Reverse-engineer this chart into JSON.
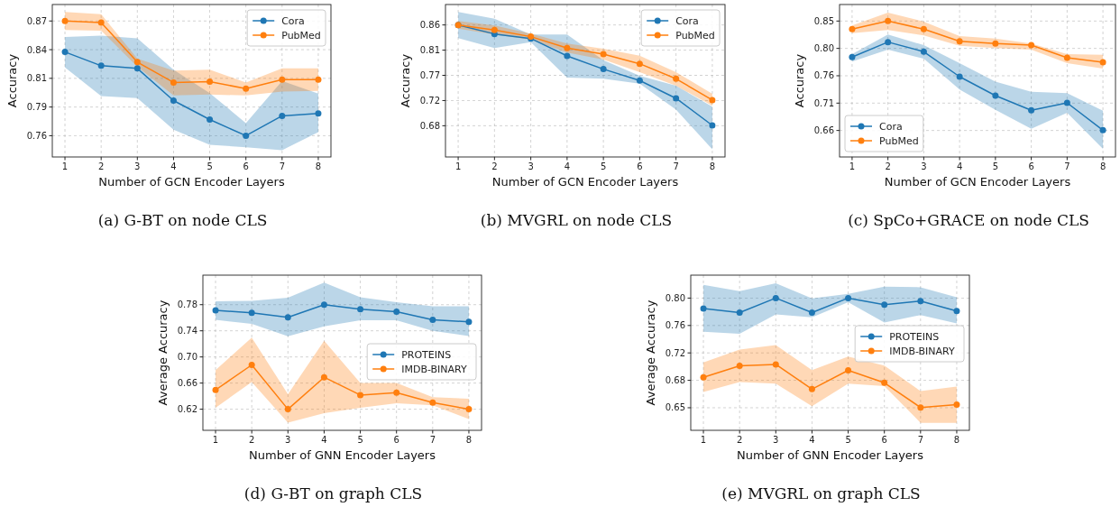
{
  "chart_data": [
    {
      "type": "line",
      "title": "(a) G-BT on node CLS",
      "xlabel": "Number of GCN Encoder Layers",
      "ylabel": "Accuracy",
      "x": [
        1,
        2,
        3,
        4,
        5,
        6,
        7,
        8
      ],
      "xlim": [
        0.65,
        8.35
      ],
      "xticks": [
        1,
        2,
        3,
        4,
        5,
        6,
        7,
        8
      ],
      "ylim": [
        0.7396,
        0.8858
      ],
      "yticks": [
        {
          "value": 0.76,
          "label": "0.76"
        },
        {
          "value": 0.7875,
          "label": "0.79"
        },
        {
          "value": 0.815,
          "label": "0.81"
        },
        {
          "value": 0.8425,
          "label": "0.84"
        },
        {
          "value": 0.87,
          "label": "0.87"
        }
      ],
      "grid": true,
      "legend": "top right",
      "marker": "circle",
      "line_style": "solid",
      "series": [
        {
          "name": "Cora",
          "color": "#1f77b4",
          "values": [
            0.8403,
            0.8271,
            0.8245,
            0.7937,
            0.7755,
            0.76,
            0.779,
            0.7813
          ],
          "lower": [
            0.8254,
            0.798,
            0.796,
            0.7658,
            0.7513,
            0.749,
            0.7461,
            0.7634
          ],
          "upper": [
            0.8547,
            0.8559,
            0.8533,
            0.8233,
            0.8009,
            0.7721,
            0.8124,
            0.8003
          ]
        },
        {
          "name": "PubMed",
          "color": "#ff7f0e",
          "values": [
            0.87,
            0.8686,
            0.8306,
            0.811,
            0.8118,
            0.8052,
            0.8138,
            0.8138
          ],
          "lower": [
            0.8614,
            0.8608,
            0.8262,
            0.7986,
            0.7994,
            0.7986,
            0.8023,
            0.8029
          ],
          "upper": [
            0.8786,
            0.8766,
            0.834,
            0.8225,
            0.8233,
            0.811,
            0.8245,
            0.8245
          ]
        }
      ]
    },
    {
      "type": "line",
      "title": "(b) MVGRL on node CLS",
      "xlabel": "Number of GCN Encoder Layers",
      "ylabel": "Accuracy",
      "x": [
        1,
        2,
        3,
        4,
        5,
        6,
        7,
        8
      ],
      "xlim": [
        0.65,
        8.35
      ],
      "xticks": [
        1,
        2,
        3,
        4,
        5,
        6,
        7,
        8
      ],
      "ylim": [
        0.6242,
        0.8965
      ],
      "yticks": [
        {
          "value": 0.68,
          "label": "0.68"
        },
        {
          "value": 0.725,
          "label": "0.72"
        },
        {
          "value": 0.77,
          "label": "0.77"
        },
        {
          "value": 0.815,
          "label": "0.81"
        },
        {
          "value": 0.86,
          "label": "0.86"
        }
      ],
      "grid": true,
      "legend": "top right",
      "marker": "circle",
      "line_style": "solid",
      "series": [
        {
          "name": "Cora",
          "color": "#1f77b4",
          "values": [
            0.86,
            0.8439,
            0.8358,
            0.8047,
            0.7811,
            0.7607,
            0.729,
            0.6806
          ],
          "lower": [
            0.8364,
            0.8187,
            0.8294,
            0.766,
            0.7639,
            0.7553,
            0.7086,
            0.6377
          ],
          "upper": [
            0.8831,
            0.8713,
            0.8428,
            0.8428,
            0.7972,
            0.7693,
            0.7515,
            0.7139
          ]
        },
        {
          "name": "PubMed",
          "color": "#ff7f0e",
          "values": [
            0.86,
            0.8509,
            0.8391,
            0.8187,
            0.8079,
            0.7907,
            0.7639,
            0.7258
          ],
          "lower": [
            0.8536,
            0.8428,
            0.8337,
            0.8106,
            0.7982,
            0.7757,
            0.7515,
            0.7155
          ],
          "upper": [
            0.867,
            0.8589,
            0.8444,
            0.8267,
            0.8176,
            0.8052,
            0.7757,
            0.737
          ]
        }
      ]
    },
    {
      "type": "line",
      "title": "(c) SpCo+GRACE on node CLS",
      "xlabel": "Number of GCN Encoder Layers",
      "ylabel": "Accuracy",
      "x": [
        1,
        2,
        3,
        4,
        5,
        6,
        7,
        8
      ],
      "xlim": [
        0.65,
        8.35
      ],
      "xticks": [
        1,
        2,
        3,
        4,
        5,
        6,
        7,
        8
      ],
      "ylim": [
        0.614,
        0.8787
      ],
      "yticks": [
        {
          "value": 0.66,
          "label": "0.66"
        },
        {
          "value": 0.7075,
          "label": "0.71"
        },
        {
          "value": 0.755,
          "label": "0.76"
        },
        {
          "value": 0.8025,
          "label": "0.80"
        },
        {
          "value": 0.85,
          "label": "0.85"
        }
      ],
      "grid": true,
      "legend": "bottom left",
      "marker": "circle",
      "line_style": "solid",
      "series": [
        {
          "name": "Cora",
          "color": "#1f77b4",
          "values": [
            0.7874,
            0.8135,
            0.7968,
            0.7534,
            0.7205,
            0.695,
            0.708,
            0.6605
          ],
          "lower": [
            0.7795,
            0.8004,
            0.7847,
            0.731,
            0.696,
            0.6631,
            0.6908,
            0.6282
          ],
          "upper": [
            0.7926,
            0.8265,
            0.8082,
            0.7769,
            0.7446,
            0.7273,
            0.7247,
            0.6944
          ]
        },
        {
          "name": "PubMed",
          "color": "#ff7f0e",
          "values": [
            0.8359,
            0.85,
            0.8359,
            0.815,
            0.8109,
            0.8082,
            0.7863,
            0.7785
          ],
          "lower": [
            0.8291,
            0.8343,
            0.825,
            0.8072,
            0.803,
            0.8004,
            0.7769,
            0.7675
          ],
          "upper": [
            0.8422,
            0.8646,
            0.849,
            0.8239,
            0.8197,
            0.8109,
            0.7926,
            0.7915
          ]
        }
      ]
    },
    {
      "type": "line",
      "title": "(d) G-BT on graph CLS",
      "xlabel": "Number of GNN Encoder Layers",
      "ylabel": "Average Accuracy",
      "x": [
        1,
        2,
        3,
        4,
        5,
        6,
        7,
        8
      ],
      "xlim": [
        0.65,
        8.35
      ],
      "xticks": [
        1,
        2,
        3,
        4,
        5,
        6,
        7,
        8
      ],
      "ylim": [
        0.5877,
        0.8252
      ],
      "yticks": [
        {
          "value": 0.62,
          "label": "0.62"
        },
        {
          "value": 0.66,
          "label": "0.66"
        },
        {
          "value": 0.7,
          "label": "0.70"
        },
        {
          "value": 0.74,
          "label": "0.74"
        },
        {
          "value": 0.78,
          "label": "0.78"
        }
      ],
      "grid": true,
      "legend": "right",
      "marker": "circle",
      "line_style": "solid",
      "series": [
        {
          "name": "PROTEINS",
          "color": "#1f77b4",
          "values": [
            0.7712,
            0.7676,
            0.7606,
            0.78,
            0.7731,
            0.7694,
            0.7569,
            0.7537
          ],
          "lower": [
            0.7569,
            0.7505,
            0.7316,
            0.7468,
            0.756,
            0.756,
            0.7399,
            0.732
          ],
          "upper": [
            0.7851,
            0.786,
            0.7906,
            0.8137,
            0.7915,
            0.7837,
            0.7777,
            0.7777
          ]
        },
        {
          "name": "IMDB-BINARY",
          "color": "#ff7f0e",
          "values": [
            0.6495,
            0.6878,
            0.62,
            0.6689,
            0.6417,
            0.6454,
            0.6301,
            0.62
          ],
          "lower": [
            0.6223,
            0.6615,
            0.5993,
            0.614,
            0.6223,
            0.6292,
            0.626,
            0.6048
          ],
          "upper": [
            0.68,
            0.7297,
            0.6431,
            0.7247,
            0.6601,
            0.6601,
            0.6385,
            0.6362
          ]
        }
      ]
    },
    {
      "type": "line",
      "title": "(e) MVGRL on graph CLS",
      "xlabel": "Number of GNN Encoder Layers",
      "ylabel": "Average Accuracy",
      "x": [
        1,
        2,
        3,
        4,
        5,
        6,
        7,
        8
      ],
      "xlim": [
        0.65,
        8.35
      ],
      "xticks": [
        1,
        2,
        3,
        4,
        5,
        6,
        7,
        8
      ],
      "ylim": [
        0.6143,
        0.8322
      ],
      "yticks": [
        {
          "value": 0.646,
          "label": "0.65"
        },
        {
          "value": 0.6845,
          "label": "0.68"
        },
        {
          "value": 0.723,
          "label": "0.72"
        },
        {
          "value": 0.7615,
          "label": "0.76"
        },
        {
          "value": 0.8,
          "label": "0.80"
        }
      ],
      "grid": true,
      "legend": "right",
      "marker": "circle",
      "line_style": "solid",
      "series": [
        {
          "name": "PROTEINS",
          "color": "#1f77b4",
          "values": [
            0.7852,
            0.7797,
            0.8,
            0.7797,
            0.8,
            0.7907,
            0.7958,
            0.7818
          ],
          "lower": [
            0.7526,
            0.7497,
            0.7772,
            0.7729,
            0.7941,
            0.7657,
            0.7763,
            0.7645
          ],
          "upper": [
            0.8186,
            0.8097,
            0.8207,
            0.7996,
            0.8059,
            0.8161,
            0.8152,
            0.8013
          ]
        },
        {
          "name": "IMDB-BINARY",
          "color": "#ff7f0e",
          "values": [
            0.6887,
            0.7048,
            0.7069,
            0.6722,
            0.6985,
            0.6811,
            0.6464,
            0.6503
          ],
          "lower": [
            0.668,
            0.682,
            0.6799,
            0.6481,
            0.6799,
            0.6765,
            0.6249,
            0.6249
          ],
          "upper": [
            0.7095,
            0.7277,
            0.734,
            0.6989,
            0.7179,
            0.7052,
            0.6693,
            0.6756
          ]
        }
      ]
    }
  ]
}
